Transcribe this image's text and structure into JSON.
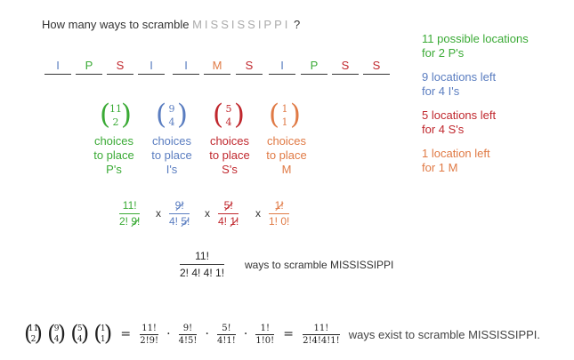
{
  "question": {
    "prefix": "How many ways to scramble",
    "word": "MISSISSIPPI",
    "suffix": "?"
  },
  "slots": [
    {
      "letter": "I",
      "color": "#5a7dc0"
    },
    {
      "letter": "P",
      "color": "#3aaa35"
    },
    {
      "letter": "S",
      "color": "#c0272d"
    },
    {
      "letter": "I",
      "color": "#5a7dc0"
    },
    {
      "letter": "I",
      "color": "#5a7dc0"
    },
    {
      "letter": "M",
      "color": "#e07a45"
    },
    {
      "letter": "S",
      "color": "#c0272d"
    },
    {
      "letter": "I",
      "color": "#5a7dc0"
    },
    {
      "letter": "P",
      "color": "#3aaa35"
    },
    {
      "letter": "S",
      "color": "#c0272d"
    },
    {
      "letter": "S",
      "color": "#c0272d"
    }
  ],
  "notes": [
    {
      "text": "11 possible locations\nfor 2 P's",
      "color": "#3aaa35"
    },
    {
      "text": "9 locations left\nfor 4 I's",
      "color": "#5a7dc0"
    },
    {
      "text": "5 locations left\nfor 4 S's",
      "color": "#c0272d"
    },
    {
      "text": "1 location left\nfor 1 M",
      "color": "#e07a45"
    }
  ],
  "choices": [
    {
      "n": "11",
      "k": "2",
      "caption": "choices\nto place\nP's",
      "color": "#3aaa35"
    },
    {
      "n": "9",
      "k": "4",
      "caption": "choices\nto place\nI's",
      "color": "#5a7dc0"
    },
    {
      "n": "5",
      "k": "4",
      "caption": "choices\nto place\nS's",
      "color": "#c0272d"
    },
    {
      "n": "1",
      "k": "1",
      "caption": "choices\nto place\nM",
      "color": "#e07a45"
    }
  ],
  "product": {
    "f1": {
      "num": "11!",
      "den_a": "2! ",
      "den_b": "9!"
    },
    "f2": {
      "num": "9!",
      "den_a": "4! ",
      "den_b": "5!"
    },
    "f3": {
      "num": "5!",
      "den_a": "4! ",
      "den_b": "1!"
    },
    "f4": {
      "num": "1!",
      "den_a": "1! 0!"
    },
    "times": "x"
  },
  "result": {
    "num": "11!",
    "den": "2! 4! 4! 1!",
    "label": "ways to scramble MISSISSIPPI"
  },
  "equation": {
    "binoms": [
      {
        "n": "11",
        "k": "2"
      },
      {
        "n": "9",
        "k": "4"
      },
      {
        "n": "5",
        "k": "4"
      },
      {
        "n": "1",
        "k": "1"
      }
    ],
    "eq": "=",
    "dot": "·",
    "fracs": [
      {
        "t": "11!",
        "b": "2!9!"
      },
      {
        "t": "9!",
        "b": "4!5!"
      },
      {
        "t": "5!",
        "b": "4!1!"
      },
      {
        "t": "1!",
        "b": "1!0!"
      }
    ],
    "final": {
      "t": "11!",
      "b": "2!4!4!1!"
    },
    "text": "ways exist to scramble MISSISSIPPI."
  },
  "colors": {
    "green": "#3aaa35",
    "blue": "#5a7dc0",
    "red": "#c0272d",
    "orange": "#e07a45",
    "gray": "#aaaaaa"
  }
}
